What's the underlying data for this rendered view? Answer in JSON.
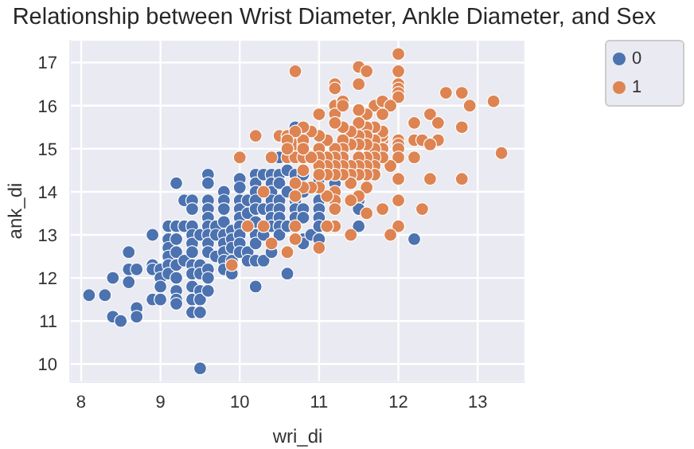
{
  "chart_data": {
    "type": "scatter",
    "title": "Relationship between Wrist Diameter, Ankle Diameter, and Sex",
    "xlabel": "wri_di",
    "ylabel": "ank_di",
    "xlim": [
      7.86,
      13.6
    ],
    "ylim": [
      9.58,
      17.53
    ],
    "xticks": [
      8,
      9,
      10,
      11,
      12,
      13
    ],
    "yticks": [
      10,
      11,
      12,
      13,
      14,
      15,
      16,
      17
    ],
    "grid": true,
    "legend": "top right",
    "marker": "circle",
    "series": [
      {
        "name": "0",
        "color": "#4c72b0",
        "x": [
          8.1,
          8.3,
          8.4,
          8.4,
          8.5,
          8.6,
          8.6,
          8.6,
          8.7,
          8.7,
          8.7,
          8.9,
          8.9,
          8.9,
          8.9,
          9.0,
          9.0,
          9.0,
          9.0,
          9.1,
          9.1,
          9.1,
          9.1,
          9.1,
          9.1,
          9.2,
          9.2,
          9.2,
          9.2,
          9.2,
          9.2,
          9.2,
          9.2,
          9.2,
          9.3,
          9.3,
          9.3,
          9.4,
          9.4,
          9.4,
          9.4,
          9.4,
          9.4,
          9.4,
          9.4,
          9.4,
          9.4,
          9.4,
          9.5,
          9.5,
          9.5,
          9.5,
          9.5,
          9.5,
          9.5,
          9.6,
          9.6,
          9.6,
          9.6,
          9.6,
          9.6,
          9.6,
          9.6,
          9.6,
          9.6,
          9.6,
          9.6,
          9.7,
          9.7,
          9.7,
          9.8,
          9.8,
          9.8,
          9.8,
          9.8,
          9.8,
          9.8,
          9.8,
          9.8,
          9.9,
          9.9,
          9.9,
          9.9,
          9.9,
          10.0,
          10.0,
          10.0,
          10.0,
          10.0,
          10.0,
          10.0,
          10.0,
          10.0,
          10.1,
          10.1,
          10.1,
          10.1,
          10.2,
          10.2,
          10.2,
          10.2,
          10.2,
          10.2,
          10.2,
          10.2,
          10.2,
          10.2,
          10.3,
          10.3,
          10.3,
          10.3,
          10.4,
          10.4,
          10.4,
          10.4,
          10.4,
          10.4,
          10.4,
          10.4,
          10.5,
          10.5,
          10.5,
          10.5,
          10.5,
          10.5,
          10.5,
          10.5,
          10.6,
          10.6,
          10.6,
          10.6,
          10.7,
          10.7,
          10.7,
          10.7,
          10.7,
          10.8,
          10.8,
          10.8,
          10.8,
          10.8,
          10.8,
          10.9,
          11.0,
          11.0,
          11.0,
          11.0,
          11.0,
          11.0,
          11.2,
          11.5,
          11.5,
          11.5,
          12.2
        ],
        "values": [
          11.6,
          11.6,
          12.0,
          11.1,
          11.0,
          12.6,
          12.2,
          11.9,
          12.2,
          11.3,
          11.1,
          13.0,
          12.3,
          12.2,
          11.5,
          12.2,
          12.0,
          11.8,
          11.5,
          13.2,
          12.9,
          12.7,
          12.5,
          12.3,
          12.1,
          14.2,
          13.2,
          12.9,
          12.6,
          12.3,
          12.0,
          11.7,
          11.5,
          11.4,
          13.8,
          13.2,
          12.4,
          13.8,
          13.6,
          13.2,
          13.0,
          12.8,
          12.6,
          12.3,
          12.1,
          11.8,
          11.5,
          11.2,
          13.0,
          12.3,
          12.1,
          11.7,
          11.5,
          11.2,
          9.9,
          14.4,
          14.2,
          13.8,
          13.6,
          13.4,
          13.2,
          13.0,
          12.8,
          12.6,
          12.2,
          12.0,
          11.7,
          13.2,
          13.0,
          12.5,
          14.0,
          13.8,
          13.6,
          13.3,
          13.0,
          12.8,
          12.6,
          12.4,
          12.2,
          13.1,
          12.9,
          12.7,
          12.4,
          12.1,
          14.3,
          14.1,
          13.8,
          13.6,
          13.4,
          13.2,
          13.0,
          12.8,
          12.6,
          13.8,
          13.5,
          12.6,
          12.4,
          14.4,
          14.2,
          14.0,
          13.8,
          13.6,
          13.3,
          13.0,
          12.8,
          12.4,
          11.8,
          14.4,
          13.6,
          13.0,
          12.4,
          14.4,
          14.2,
          14.0,
          13.8,
          13.6,
          13.4,
          13.2,
          12.6,
          14.8,
          14.4,
          14.2,
          13.8,
          13.6,
          13.4,
          13.2,
          13.0,
          14.5,
          14.0,
          13.2,
          12.1,
          15.5,
          14.4,
          13.8,
          13.6,
          13.4,
          14.4,
          14.0,
          13.6,
          13.4,
          12.9,
          12.8,
          13.0,
          14.3,
          13.8,
          13.6,
          13.4,
          13.2,
          12.9,
          14.2,
          13.8,
          13.6,
          13.2,
          12.9
        ]
      },
      {
        "name": "1",
        "color": "#dd8452",
        "x": [
          10.7,
          10.2,
          10.0,
          10.3,
          10.1,
          10.3,
          10.4,
          10.5,
          10.6,
          10.6,
          10.7,
          10.7,
          10.8,
          10.8,
          10.6,
          10.4,
          9.9,
          10.7,
          10.7,
          12.0,
          12.0,
          12.0,
          12.0,
          12.0,
          12.0,
          11.5,
          11.5,
          11.6,
          11.2,
          11.2,
          11.2,
          11.2,
          11.3,
          11.3,
          11.7,
          11.8,
          11.9,
          11.6,
          11.8,
          11.5,
          12.6,
          12.8,
          12.9,
          13.2,
          13.3,
          12.2,
          12.4,
          12.5,
          12.8,
          12.2,
          12.3,
          12.5,
          12.4,
          12.2,
          12.4,
          12.8,
          12.0,
          12.0,
          12.0,
          12.0,
          12.0,
          12.0,
          12.0,
          12.3,
          11.9,
          11.8,
          11.8,
          11.8,
          11.8,
          11.8,
          11.8,
          11.9,
          11.7,
          11.7,
          11.7,
          11.7,
          11.7,
          11.7,
          11.6,
          11.6,
          11.6,
          11.6,
          11.6,
          11.6,
          11.6,
          11.6,
          11.5,
          11.5,
          11.5,
          11.5,
          11.5,
          11.5,
          11.5,
          11.4,
          11.4,
          11.4,
          11.4,
          11.4,
          11.4,
          11.4,
          11.3,
          11.3,
          11.3,
          11.3,
          11.3,
          11.3,
          11.2,
          11.2,
          11.2,
          11.2,
          11.2,
          11.2,
          11.2,
          11.2,
          11.2,
          11.1,
          11.1,
          11.1,
          11.1,
          11.1,
          11.1,
          11.0,
          11.0,
          11.0,
          11.0,
          11.0,
          11.0,
          11.0,
          11.0,
          10.9,
          10.9,
          10.9,
          10.8,
          10.8,
          10.8,
          10.8,
          10.8,
          10.7,
          10.7,
          10.7,
          10.7,
          10.6,
          10.6
        ],
        "values": [
          16.8,
          15.3,
          14.8,
          14.0,
          13.2,
          13.2,
          14.8,
          15.3,
          15.3,
          14.8,
          15.1,
          14.8,
          15.1,
          14.8,
          12.6,
          12.8,
          12.3,
          13.2,
          12.9,
          17.2,
          16.8,
          16.5,
          16.4,
          16.3,
          16.2,
          16.9,
          16.5,
          16.8,
          16.5,
          16.4,
          16.0,
          15.8,
          16.1,
          16.0,
          16.0,
          16.1,
          16.0,
          15.8,
          15.8,
          15.9,
          16.3,
          16.3,
          16.0,
          16.1,
          14.9,
          15.6,
          15.8,
          15.6,
          15.5,
          15.2,
          15.2,
          15.2,
          15.1,
          14.8,
          14.3,
          14.3,
          15.2,
          15.1,
          15.0,
          14.8,
          14.3,
          13.8,
          13.2,
          13.6,
          14.6,
          15.2,
          15.3,
          15.4,
          15.0,
          14.8,
          13.6,
          13.0,
          15.5,
          15.2,
          15.0,
          14.8,
          14.6,
          14.4,
          15.5,
          15.3,
          15.1,
          14.8,
          14.6,
          14.4,
          14.1,
          13.5,
          15.6,
          15.3,
          15.1,
          14.8,
          14.6,
          14.4,
          13.9,
          15.4,
          15.1,
          14.6,
          14.4,
          14.2,
          13.8,
          13.0,
          15.5,
          15.2,
          15.0,
          14.8,
          14.6,
          14.4,
          15.6,
          15.0,
          14.8,
          14.6,
          14.4,
          14.0,
          13.8,
          13.6,
          13.2,
          15.2,
          14.8,
          14.6,
          14.4,
          13.9,
          13.2,
          15.8,
          15.3,
          15.0,
          14.8,
          14.6,
          14.4,
          14.1,
          12.7,
          15.4,
          14.8,
          14.1,
          15.5,
          15.2,
          15.0,
          14.5,
          14.1,
          15.4,
          14.2,
          13.9,
          12.9,
          15.2,
          15.0
        ]
      }
    ]
  }
}
